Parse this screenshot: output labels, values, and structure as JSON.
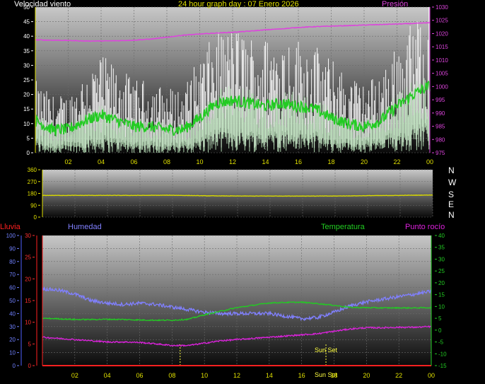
{
  "header": {
    "title": "24 hour graph day : 07 Enero 2026",
    "wind_label": "Velocidad viento",
    "pressure_label": "Presión"
  },
  "compass": [
    "N",
    "W",
    "S",
    "E",
    "N"
  ],
  "lower_labels": {
    "rain": "Lluvia",
    "humidity": "Humedad",
    "temperature": "Temperatura",
    "dewpoint": "Punto rocío"
  },
  "colors": {
    "wind_gust": "#ffffff",
    "wind_avg": "#bfe8bf",
    "wind_avg_line": "#22cc22",
    "pressure": "#dd44dd",
    "direction": "#d8d800",
    "humidity": "#8080ff",
    "temperature": "#22cc22",
    "dewpoint": "#dd22dd",
    "rain": "#ff2020",
    "axis_left_lower": "#5060ff",
    "axis_rain": "#ff2020",
    "axis_temp": "#22cc22",
    "x_ticks": "#e0e000"
  },
  "chart_data": [
    {
      "type": "line",
      "id": "wind",
      "title": "24 hour graph day : 07 Enero 2026",
      "x_ticks": [
        "02",
        "04",
        "06",
        "08",
        "10",
        "12",
        "14",
        "16",
        "18",
        "20",
        "22",
        "00"
      ],
      "y_left": {
        "label": "Velocidad viento",
        "ylim": [
          0,
          50
        ],
        "ticks": [
          0,
          5,
          10,
          15,
          20,
          25,
          30,
          35,
          40,
          45,
          50
        ]
      },
      "y_right": {
        "label": "Presión",
        "ylim": [
          975,
          1030
        ],
        "ticks": [
          975,
          980,
          985,
          990,
          995,
          1000,
          1005,
          1010,
          1015,
          1020,
          1025,
          1030
        ]
      },
      "series": [
        {
          "name": "Presión",
          "axis": "right",
          "x": [
            0,
            1,
            2,
            3,
            4,
            5,
            6,
            7,
            8,
            9,
            10,
            11,
            12,
            13,
            14,
            15,
            16,
            17,
            18,
            19,
            20,
            21,
            22,
            23,
            24
          ],
          "values": [
            1017.6,
            1017.5,
            1017.4,
            1017.2,
            1017.2,
            1017.3,
            1017.5,
            1017.9,
            1018.6,
            1019.4,
            1019.8,
            1020.2,
            1020.5,
            1020.9,
            1021.4,
            1021.8,
            1022.3,
            1022.6,
            1022.8,
            1023.0,
            1023.2,
            1023.4,
            1023.6,
            1023.8,
            1024.1
          ]
        }
      ],
      "wind_avg_profile": {
        "x": [
          0,
          1,
          2,
          3,
          4,
          5,
          6,
          7,
          8,
          9,
          10,
          11,
          12,
          13,
          14,
          15,
          16,
          17,
          18,
          19,
          20,
          21,
          22,
          23,
          24
        ],
        "values": [
          11,
          8,
          8,
          11,
          13,
          11,
          9,
          9,
          8,
          8,
          12,
          17,
          18,
          17,
          16,
          17,
          16,
          15,
          12,
          10,
          9,
          11,
          16,
          20,
          23
        ]
      },
      "wind_gust_profile": {
        "x": [
          0,
          1,
          2,
          3,
          4,
          5,
          6,
          7,
          8,
          9,
          10,
          11,
          12,
          13,
          14,
          15,
          16,
          17,
          18,
          19,
          20,
          21,
          22,
          23,
          24
        ],
        "values": [
          20,
          16,
          16,
          23,
          27,
          24,
          20,
          20,
          18,
          18,
          27,
          33,
          35,
          33,
          32,
          33,
          32,
          30,
          26,
          22,
          19,
          23,
          30,
          37,
          42
        ]
      }
    },
    {
      "type": "line",
      "id": "direction",
      "x_ticks": [
        "02",
        "04",
        "06",
        "08",
        "10",
        "12",
        "14",
        "16",
        "18",
        "20",
        "22",
        "00"
      ],
      "y_left": {
        "ylim": [
          0,
          360
        ],
        "ticks": [
          0,
          90,
          180,
          270,
          360
        ]
      },
      "series": [
        {
          "name": "direction",
          "x": [
            0,
            2,
            4,
            6,
            8,
            10,
            12,
            14,
            16,
            18,
            20,
            22,
            24
          ],
          "values": [
            165,
            165,
            165,
            165,
            166,
            162,
            160,
            160,
            160,
            160,
            163,
            165,
            168
          ]
        }
      ]
    },
    {
      "type": "line",
      "id": "lower",
      "x_ticks": [
        "02",
        "04",
        "06",
        "08",
        "10",
        "12",
        "14",
        "16",
        "18",
        "20",
        "22",
        "00"
      ],
      "y_left": {
        "label": "Humedad",
        "ylim": [
          0,
          100
        ],
        "ticks": [
          0,
          10,
          20,
          30,
          40,
          50,
          60,
          70,
          80,
          90,
          100
        ]
      },
      "y_rain": {
        "label": "Lluvia",
        "ylim": [
          0,
          30
        ],
        "ticks": [
          0,
          5,
          10,
          15,
          20,
          25,
          30
        ]
      },
      "y_right": {
        "label": "Temperatura",
        "ylim": [
          -15,
          40
        ],
        "ticks": [
          -15,
          -10,
          -5,
          0,
          5,
          10,
          15,
          20,
          25,
          30,
          35,
          40
        ]
      },
      "annotations": [
        {
          "text": "Sun Set",
          "x": 17.5
        },
        {
          "text": "Sun Set",
          "x": 17.5
        }
      ],
      "vlines_x": [
        8.5,
        17.5
      ],
      "series": [
        {
          "name": "Humedad",
          "axis": "left",
          "x": [
            0,
            1,
            2,
            3,
            4,
            5,
            6,
            7,
            8,
            9,
            10,
            11,
            12,
            13,
            14,
            15,
            16,
            17,
            18,
            19,
            20,
            21,
            22,
            23,
            24
          ],
          "values": [
            59,
            58,
            55,
            50,
            48,
            47,
            48,
            47,
            45,
            43,
            41,
            40,
            40,
            40,
            40,
            38,
            36,
            37,
            41,
            46,
            49,
            51,
            53,
            55,
            57
          ]
        },
        {
          "name": "Temperatura",
          "axis": "right",
          "x": [
            0,
            1,
            2,
            3,
            4,
            5,
            6,
            7,
            8,
            9,
            10,
            11,
            12,
            13,
            14,
            15,
            16,
            17,
            18,
            19,
            20,
            21,
            22,
            23,
            24
          ],
          "values": [
            5,
            4.8,
            4.5,
            4.5,
            4.6,
            4.5,
            4.3,
            4.2,
            4.2,
            4.6,
            6.5,
            8,
            9.5,
            10.5,
            11.5,
            11.7,
            11.8,
            11.2,
            10.5,
            9.6,
            9.5,
            9.4,
            9.4,
            9.4,
            9.5
          ]
        },
        {
          "name": "Punto rocío",
          "axis": "right",
          "x": [
            0,
            1,
            2,
            3,
            4,
            5,
            6,
            7,
            8,
            9,
            10,
            11,
            12,
            13,
            14,
            15,
            16,
            17,
            18,
            19,
            20,
            21,
            22,
            23,
            24
          ],
          "values": [
            -3,
            -3.5,
            -4,
            -4.5,
            -5,
            -5,
            -5.2,
            -5.8,
            -6.5,
            -6.5,
            -5.5,
            -4.5,
            -4,
            -3.5,
            -3,
            -2.5,
            -2,
            -1.5,
            -0.5,
            0.5,
            1,
            1,
            1.2,
            1.2,
            1.5
          ]
        },
        {
          "name": "Lluvia",
          "axis": "rain",
          "x": [
            0,
            24
          ],
          "values": [
            0,
            0
          ]
        }
      ]
    }
  ]
}
